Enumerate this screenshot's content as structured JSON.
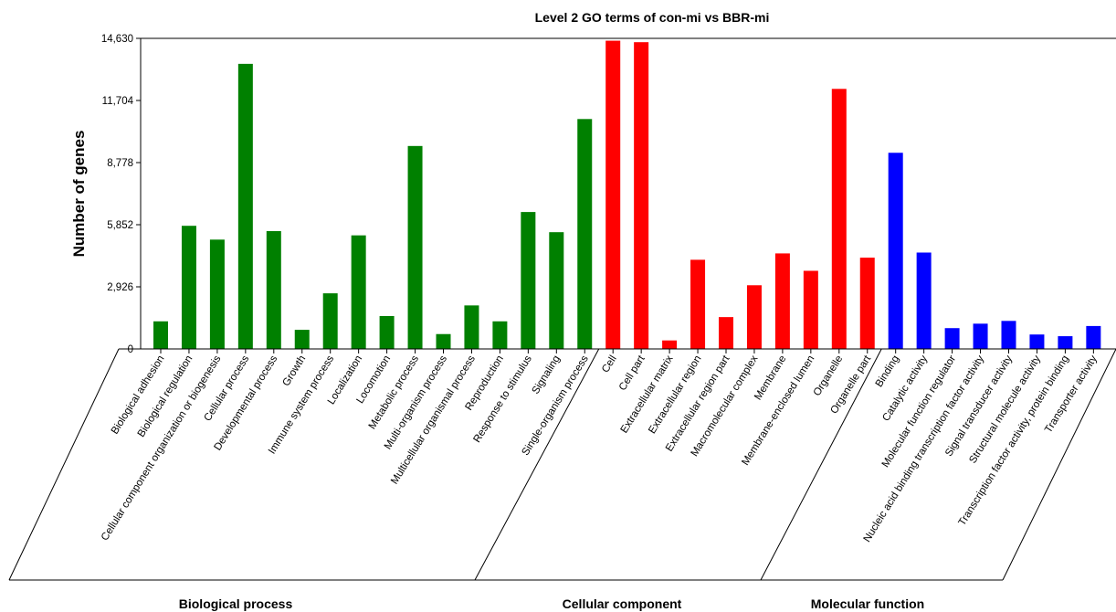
{
  "chart_data": {
    "type": "bar",
    "title": "Level 2 GO terms of con-mi vs BBR-mi",
    "xlabel": "",
    "ylabel": "Number of genes",
    "ylim": [
      0,
      14630
    ],
    "yticks": [
      0,
      2926,
      5852,
      8778,
      11704,
      14630
    ],
    "ytick_labels": [
      "0",
      "2,926",
      "5,852",
      "8,778",
      "11,704",
      "14,630"
    ],
    "grid": false,
    "legend": "none",
    "colors": {
      "Biological process": "#008000",
      "Cellular component": "#ff0000",
      "Molecular function": "#0000ff"
    },
    "groups": [
      {
        "name": "Biological process",
        "color": "#008000",
        "categories": [
          "Biological adhesion",
          "Biological regulation",
          "Cellular component organization or biogenesis",
          "Cellular process",
          "Developmental process",
          "Growth",
          "Immune system process",
          "Localization",
          "Locomotion",
          "Metabolic process",
          "Multi-organism process",
          "Multicellular organismal process",
          "Reproduction",
          "Response to stimulus",
          "Signaling",
          "Single-organism process"
        ],
        "values": [
          1300,
          5800,
          5150,
          13430,
          5550,
          900,
          2620,
          5350,
          1550,
          9560,
          700,
          2050,
          1300,
          6450,
          5500,
          10830
        ]
      },
      {
        "name": "Cellular component",
        "color": "#ff0000",
        "categories": [
          "Cell",
          "Cell part",
          "Extracellular matrix",
          "Extracellular region",
          "Extracellular region part",
          "Macromolecular complex",
          "Membrane",
          "Membrane-enclosed lumen",
          "Organelle",
          "Organelle part"
        ],
        "values": [
          14520,
          14450,
          400,
          4200,
          1500,
          3000,
          4500,
          3680,
          12250,
          4300
        ]
      },
      {
        "name": "Molecular function",
        "color": "#0000ff",
        "categories": [
          "Binding",
          "Catalytic activity",
          "Molecular function regulator",
          "Nucleic acid binding transcription factor activity",
          "Signal transducer activity",
          "Structural molecule activity",
          "Transcription factor activity, protein binding",
          "Transporter activity"
        ],
        "values": [
          9240,
          4540,
          980,
          1190,
          1320,
          680,
          600,
          1080
        ]
      }
    ]
  }
}
